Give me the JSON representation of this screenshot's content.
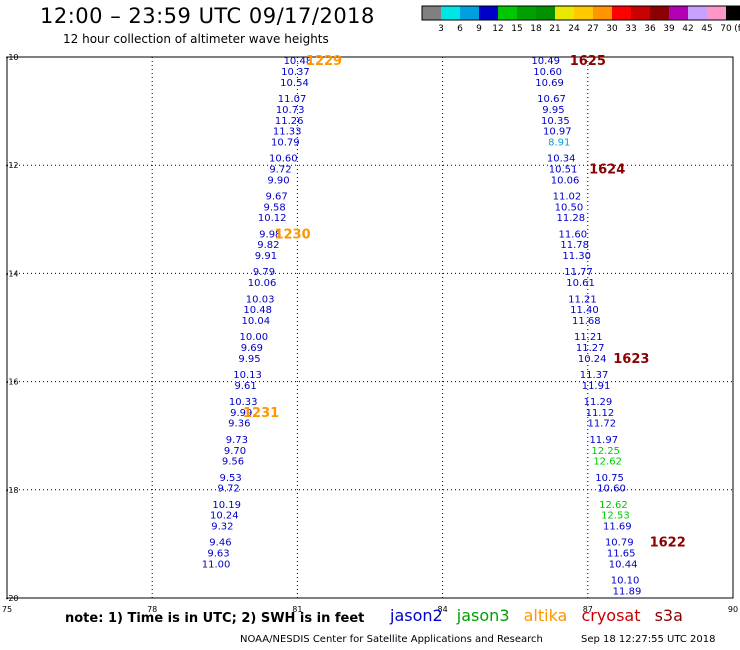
{
  "header": {
    "title": "12:00 – 23:59 UTC 09/17/2018",
    "subtitle": "12 hour collection of altimeter wave heights"
  },
  "colorbar": {
    "labels": [
      "3",
      "6",
      "9",
      "12",
      "15",
      "18",
      "21",
      "24",
      "27",
      "30",
      "33",
      "36",
      "39",
      "42",
      "45",
      "70"
    ],
    "unit": "(ft)",
    "colors": [
      "#808080",
      "#00e5e5",
      "#00a0e0",
      "#0000c8",
      "#00c800",
      "#00a000",
      "#009000",
      "#e8e800",
      "#ffc800",
      "#ff9600",
      "#ff0000",
      "#c80000",
      "#8b0000",
      "#b400b4",
      "#c8a0ff",
      "#ff96c8",
      "#000000"
    ]
  },
  "satellites": [
    {
      "name": "jason2",
      "color": "#0000c8"
    },
    {
      "name": "jason3",
      "color": "#00a000"
    },
    {
      "name": "altika",
      "color": "#ff9600"
    },
    {
      "name": "cryosat",
      "color": "#c80000"
    },
    {
      "name": "s3a",
      "color": "#8b0000"
    }
  ],
  "footer": {
    "note": "note:  1) Time is in UTC;  2) SWH is in feet",
    "credit": "NOAA/NESDIS Center for Satellite Applications and Research",
    "timestamp": "Sep 18 12:27:55 UTC 2018"
  },
  "chart_data": {
    "type": "scatter",
    "title": "12:00 – 23:59 UTC 09/17/2018",
    "subtitle": "12 hour collection of altimeter wave heights",
    "xlabel": "",
    "ylabel": "",
    "x_ticks": [
      "75",
      "78",
      "81",
      "84",
      "87",
      "90"
    ],
    "y_ticks": [
      "-10",
      "-12",
      "-14",
      "-16",
      "-18",
      "-20"
    ],
    "xlim": [
      75,
      90
    ],
    "ylim": [
      -20,
      -10
    ],
    "grid": true,
    "series": [
      {
        "name": "altika",
        "color": "#ff9600",
        "points": [
          {
            "x": 81.01,
            "y": -10.06,
            "label": "10.48"
          },
          {
            "x": 80.96,
            "y": -10.26,
            "label": "10.37"
          },
          {
            "x": 80.94,
            "y": -10.46,
            "label": "10.54"
          },
          {
            "x": 80.89,
            "y": -10.76,
            "label": "11.07"
          },
          {
            "x": 80.85,
            "y": -10.96,
            "label": "10.73"
          },
          {
            "x": 80.83,
            "y": -11.16,
            "label": "11.26"
          },
          {
            "x": 80.79,
            "y": -11.36,
            "label": "11.33"
          },
          {
            "x": 80.75,
            "y": -11.56,
            "label": "10.79"
          },
          {
            "x": 80.71,
            "y": -11.86,
            "label": "10.60"
          },
          {
            "x": 80.65,
            "y": -12.06,
            "label": "9.72"
          },
          {
            "x": 80.61,
            "y": -12.26,
            "label": "9.90"
          },
          {
            "x": 80.57,
            "y": -12.56,
            "label": "9.67"
          },
          {
            "x": 80.53,
            "y": -12.76,
            "label": "9.58"
          },
          {
            "x": 80.48,
            "y": -12.96,
            "label": "10.12"
          },
          {
            "x": 80.44,
            "y": -13.26,
            "label": "9.98"
          },
          {
            "x": 80.4,
            "y": -13.46,
            "label": "9.82"
          },
          {
            "x": 80.35,
            "y": -13.66,
            "label": "9.91"
          },
          {
            "x": 80.31,
            "y": -13.96,
            "label": "9.79"
          },
          {
            "x": 80.27,
            "y": -14.16,
            "label": "10.06"
          },
          {
            "x": 80.23,
            "y": -14.46,
            "label": "10.03"
          },
          {
            "x": 80.18,
            "y": -14.66,
            "label": "10.48"
          },
          {
            "x": 80.14,
            "y": -14.86,
            "label": "10.04"
          },
          {
            "x": 80.1,
            "y": -15.16,
            "label": "10.00"
          },
          {
            "x": 80.06,
            "y": -15.36,
            "label": "9.69"
          },
          {
            "x": 80.01,
            "y": -15.56,
            "label": "9.95"
          },
          {
            "x": 79.97,
            "y": -15.86,
            "label": "10.13"
          },
          {
            "x": 79.93,
            "y": -16.06,
            "label": "9.61"
          },
          {
            "x": 79.88,
            "y": -16.36,
            "label": "10.33"
          },
          {
            "x": 79.84,
            "y": -16.56,
            "label": "9.99"
          },
          {
            "x": 79.8,
            "y": -16.76,
            "label": "9.36"
          },
          {
            "x": 79.75,
            "y": -17.06,
            "label": "9.73"
          },
          {
            "x": 79.71,
            "y": -17.26,
            "label": "9.70"
          },
          {
            "x": 79.67,
            "y": -17.46,
            "label": "9.56"
          },
          {
            "x": 79.62,
            "y": -17.76,
            "label": "9.53"
          },
          {
            "x": 79.58,
            "y": -17.96,
            "label": "9.72"
          },
          {
            "x": 79.54,
            "y": -18.26,
            "label": "10.19"
          },
          {
            "x": 79.49,
            "y": -18.46,
            "label": "10.24"
          },
          {
            "x": 79.45,
            "y": -18.66,
            "label": "9.32"
          },
          {
            "x": 79.41,
            "y": -18.96,
            "label": "9.46"
          },
          {
            "x": 79.37,
            "y": -19.16,
            "label": "9.63"
          },
          {
            "x": 79.32,
            "y": -19.36,
            "label": "11.00"
          }
        ]
      },
      {
        "name": "cryosat",
        "color": "#c80000",
        "points": [
          {
            "x": 86.13,
            "y": -10.06,
            "label": "10.49"
          },
          {
            "x": 86.17,
            "y": -10.26,
            "label": "10.60"
          },
          {
            "x": 86.21,
            "y": -10.46,
            "label": "10.69"
          },
          {
            "x": 86.25,
            "y": -10.76,
            "label": "10.67"
          },
          {
            "x": 86.29,
            "y": -10.96,
            "label": "9.95"
          },
          {
            "x": 86.33,
            "y": -11.16,
            "label": "10.35"
          },
          {
            "x": 86.37,
            "y": -11.36,
            "label": "10.97"
          },
          {
            "x": 86.41,
            "y": -11.56,
            "label": "8.91"
          },
          {
            "x": 86.45,
            "y": -11.86,
            "label": "10.34"
          },
          {
            "x": 86.49,
            "y": -12.06,
            "label": "10.51"
          },
          {
            "x": 86.53,
            "y": -12.26,
            "label": "10.06"
          },
          {
            "x": 86.57,
            "y": -12.56,
            "label": "11.02"
          },
          {
            "x": 86.61,
            "y": -12.76,
            "label": "10.50"
          },
          {
            "x": 86.65,
            "y": -12.96,
            "label": "11.28"
          },
          {
            "x": 86.69,
            "y": -13.26,
            "label": "11.60"
          },
          {
            "x": 86.73,
            "y": -13.46,
            "label": "11.78"
          },
          {
            "x": 86.77,
            "y": -13.66,
            "label": "11.30"
          },
          {
            "x": 86.81,
            "y": -13.96,
            "label": "11.77"
          },
          {
            "x": 86.85,
            "y": -14.16,
            "label": "10.61"
          },
          {
            "x": 86.89,
            "y": -14.46,
            "label": "11.21"
          },
          {
            "x": 86.93,
            "y": -14.66,
            "label": "11.40"
          },
          {
            "x": 86.97,
            "y": -14.86,
            "label": "11.68"
          },
          {
            "x": 87.01,
            "y": -15.16,
            "label": "11.21"
          },
          {
            "x": 87.05,
            "y": -15.36,
            "label": "11.27"
          },
          {
            "x": 87.09,
            "y": -15.56,
            "label": "10.24"
          },
          {
            "x": 87.13,
            "y": -15.86,
            "label": "11.37"
          },
          {
            "x": 87.17,
            "y": -16.06,
            "label": "11.91"
          },
          {
            "x": 87.21,
            "y": -16.36,
            "label": "11.29"
          },
          {
            "x": 87.25,
            "y": -16.56,
            "label": "11.12"
          },
          {
            "x": 87.29,
            "y": -16.76,
            "label": "11.72"
          },
          {
            "x": 87.33,
            "y": -17.06,
            "label": "11.97"
          },
          {
            "x": 87.37,
            "y": -17.26,
            "label": "12.25"
          },
          {
            "x": 87.41,
            "y": -17.46,
            "label": "12.62"
          },
          {
            "x": 87.45,
            "y": -17.76,
            "label": "10.75"
          },
          {
            "x": 87.49,
            "y": -17.96,
            "label": "10.60"
          },
          {
            "x": 87.53,
            "y": -18.26,
            "label": "12.62"
          },
          {
            "x": 87.57,
            "y": -18.46,
            "label": "12.53"
          },
          {
            "x": 87.61,
            "y": -18.66,
            "label": "11.69"
          },
          {
            "x": 87.65,
            "y": -18.96,
            "label": "10.79"
          },
          {
            "x": 87.69,
            "y": -19.16,
            "label": "11.65"
          },
          {
            "x": 87.73,
            "y": -19.36,
            "label": "10.44"
          },
          {
            "x": 87.77,
            "y": -19.66,
            "label": "10.10"
          },
          {
            "x": 87.81,
            "y": -19.86,
            "label": "11.89"
          }
        ]
      }
    ],
    "annotations": [
      {
        "text": "1229",
        "x": 81.55,
        "y": -10.06,
        "color": "#ff9600"
      },
      {
        "text": "1230",
        "x": 80.9,
        "y": -13.26,
        "color": "#ff9600"
      },
      {
        "text": "1231",
        "x": 80.25,
        "y": -16.56,
        "color": "#ff9600"
      },
      {
        "text": "1625",
        "x": 87.0,
        "y": -10.06,
        "color": "#8b0000"
      },
      {
        "text": "1624",
        "x": 87.4,
        "y": -12.06,
        "color": "#8b0000"
      },
      {
        "text": "1623",
        "x": 87.9,
        "y": -15.56,
        "color": "#8b0000"
      },
      {
        "text": "1622",
        "x": 88.65,
        "y": -18.96,
        "color": "#8b0000"
      }
    ]
  }
}
